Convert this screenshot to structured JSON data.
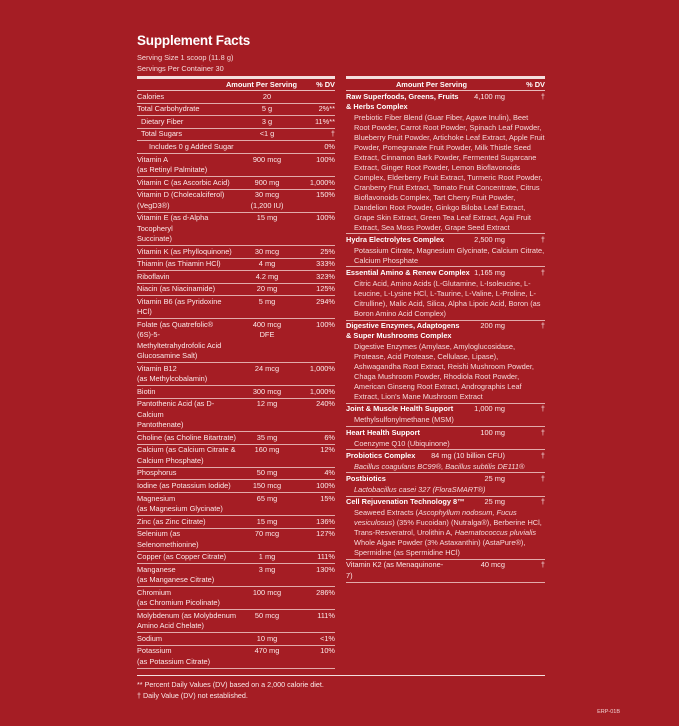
{
  "title": "Supplement Facts",
  "serving_size": "Serving Size 1 scoop (11.8 g)",
  "servings_per_container": "Servings Per Container 30",
  "header": {
    "amount": "Amount Per Serving",
    "dv": "% DV"
  },
  "left_rows": [
    {
      "name": "Calories",
      "amount": "20",
      "dv": "",
      "indent": 0
    },
    {
      "name": "Total Carbohydrate",
      "amount": "5 g",
      "dv": "2%**",
      "indent": 0
    },
    {
      "name": "Dietary Fiber",
      "amount": "3 g",
      "dv": "11%**",
      "indent": 1
    },
    {
      "name": "Total Sugars",
      "amount": "<1 g",
      "dv": "†",
      "indent": 1
    },
    {
      "name": "Includes 0 g Added Sugar",
      "amount": "",
      "dv": "0%",
      "indent": 2
    },
    {
      "name": "Vitamin A\n(as Retinyl Palmitate)",
      "amount": "900 mcg",
      "dv": "100%",
      "indent": 0
    },
    {
      "name": "Vitamin C (as Ascorbic Acid)",
      "amount": "900 mg",
      "dv": "1,000%",
      "indent": 0
    },
    {
      "name": "Vitamin D (Cholecalciferol)\n(VegD3®)",
      "amount": "30 mcg\n(1,200 IU)",
      "dv": "150%",
      "indent": 0
    },
    {
      "name": "Vitamin E (as d-Alpha Tocopheryl\nSuccinate)",
      "amount": "15 mg",
      "dv": "100%",
      "indent": 0
    },
    {
      "name": "Vitamin K (as Phylloquinone)",
      "amount": "30 mcg",
      "dv": "25%",
      "indent": 0
    },
    {
      "name": "Thiamin (as Thiamin HCl)",
      "amount": "4 mg",
      "dv": "333%",
      "indent": 0
    },
    {
      "name": "Riboflavin",
      "amount": "4.2 mg",
      "dv": "323%",
      "indent": 0
    },
    {
      "name": "Niacin (as Niacinamide)",
      "amount": "20 mg",
      "dv": "125%",
      "indent": 0
    },
    {
      "name": "Vitamin B6 (as Pyridoxine HCl)",
      "amount": "5 mg",
      "dv": "294%",
      "indent": 0
    },
    {
      "name": "Folate (as Quatrefolic® (6S)-5-\nMethyltetrahydrofolic Acid\nGlucosamine Salt)",
      "amount": "400 mcg\nDFE",
      "dv": "100%",
      "indent": 0
    },
    {
      "name": "Vitamin B12\n(as Methylcobalamin)",
      "amount": "24 mcg",
      "dv": "1,000%",
      "indent": 0
    },
    {
      "name": "Biotin",
      "amount": "300 mcg",
      "dv": "1,000%",
      "indent": 0
    },
    {
      "name": "Pantothenic Acid (as D-Calcium\nPantothenate)",
      "amount": "12 mg",
      "dv": "240%",
      "indent": 0
    },
    {
      "name": "Choline (as Choline Bitartrate)",
      "amount": "35 mg",
      "dv": "6%",
      "indent": 0
    },
    {
      "name": "Calcium (as Calcium Citrate &\nCalcium Phosphate)",
      "amount": "160 mg",
      "dv": "12%",
      "indent": 0
    },
    {
      "name": "Phosphorus",
      "amount": "50 mg",
      "dv": "4%",
      "indent": 0
    },
    {
      "name": "Iodine (as Potassium Iodide)",
      "amount": "150 mcg",
      "dv": "100%",
      "indent": 0
    },
    {
      "name": "Magnesium\n(as Magnesium Glycinate)",
      "amount": "65 mg",
      "dv": "15%",
      "indent": 0
    },
    {
      "name": "Zinc (as Zinc Citrate)",
      "amount": "15 mg",
      "dv": "136%",
      "indent": 0
    },
    {
      "name": "Selenium (as Selenomethionine)",
      "amount": "70 mcg",
      "dv": "127%",
      "indent": 0
    },
    {
      "name": "Copper (as Copper Citrate)",
      "amount": "1 mg",
      "dv": "111%",
      "indent": 0
    },
    {
      "name": "Manganese\n(as Manganese Citrate)",
      "amount": "3 mg",
      "dv": "130%",
      "indent": 0
    },
    {
      "name": "Chromium\n(as Chromium Picolinate)",
      "amount": "100 mcg",
      "dv": "286%",
      "indent": 0
    },
    {
      "name": "Molybdenum (as Molybdenum\nAmino Acid Chelate)",
      "amount": "50 mcg",
      "dv": "111%",
      "indent": 0
    },
    {
      "name": "Sodium",
      "amount": "10 mg",
      "dv": "<1%",
      "indent": 0
    },
    {
      "name": "Potassium\n(as Potassium Citrate)",
      "amount": "470 mg",
      "dv": "10%",
      "indent": 0
    }
  ],
  "right_sections": [
    {
      "name": "Raw Superfoods, Greens, Fruits\n& Herbs Complex",
      "amount": "4,100 mg",
      "dv": "†",
      "desc": [
        {
          "t": "Prebiotic Fiber Blend (Guar Fiber, Agave Inulin), Beet Root Powder, Carrot Root Powder, Spinach Leaf Powder, Blueberry Fruit Powder, Artichoke Leaf Extract, Apple Fruit Powder, Pomegranate Fruit Powder, Milk Thistle Seed Extract, Cinnamon Bark Powder, Fermented Sugarcane Extract, Ginger Root Powder, Lemon Bioflavonoids Complex, Elderberry Fruit Extract, Turmeric Root Powder, Cranberry Fruit Extract, Tomato Fruit Concentrate, Citrus Bioflavonoids Complex, Tart Cherry Fruit Powder, Dandelion Root Powder, Ginkgo Biloba Leaf Extract, Grape Skin Extract, Green Tea Leaf Extract, Açai Fruit Extract, Sea Moss Powder, Grape Seed Extract",
          "i": false
        }
      ]
    },
    {
      "name": "Hydra Electrolytes Complex",
      "amount": "2,500 mg",
      "dv": "†",
      "desc": [
        {
          "t": "Potassium Citrate, Magnesium Glycinate, Calcium Citrate, Calcium Phosphate",
          "i": false
        }
      ]
    },
    {
      "name": "Essential Amino & Renew Complex",
      "amount": "1,165 mg",
      "dv": "†",
      "desc": [
        {
          "t": "Citric Acid, Amino Acids (L-Glutamine, L-Isoleucine, L-Leucine, L-Lysine HCl, L-Taurine, L-Valine, L-Proline, L-Citrulline), Malic Acid, Silica, Alpha Lipoic Acid, Boron (as Boron Amino Acid Complex)",
          "i": false
        }
      ]
    },
    {
      "name": "Digestive Enzymes, Adaptogens\n& Super Mushrooms Complex",
      "amount": "200 mg",
      "dv": "†",
      "desc": [
        {
          "t": "Digestive Enzymes (Amylase, Amyloglucosidase, Protease, Acid Protease, Cellulase, Lipase), Ashwagandha Root Extract, Reishi Mushroom Powder, Chaga Mushroom Powder, Rhodiola Root Powder, American Ginseng Root Extract, Andrographis Leaf Extract, Lion's Mane Mushroom Extract",
          "i": false
        }
      ]
    },
    {
      "name": "Joint & Muscle Health Support",
      "amount": "1,000 mg",
      "dv": "†",
      "desc": [
        {
          "t": "Methylsulfonylmethane (MSM)",
          "i": false
        }
      ]
    },
    {
      "name": "Heart Health Support",
      "amount": "100 mg",
      "dv": "†",
      "desc": [
        {
          "t": "Coenzyme Q10 (Ubiquinone)",
          "i": false
        }
      ]
    },
    {
      "name": "Probiotics Complex",
      "amount": "84 mg (10 billion CFU)",
      "dv": "†",
      "desc": [
        {
          "t": "Bacillus coagulans BC99®, Bacillus subtilis DE111®",
          "i": true
        }
      ]
    },
    {
      "name": "Postbiotics",
      "amount": "25 mg",
      "dv": "†",
      "desc": [
        {
          "t": "Lactobacillus casei 327 (FloraSMART®)",
          "i": true
        }
      ]
    },
    {
      "name": "Cell Rejuvenation Technology 8™",
      "amount": "25 mg",
      "dv": "†",
      "desc": [
        {
          "t": "Seaweed Extracts (",
          "i": false
        },
        {
          "t": "Ascophyllum nodosum, Fucus vesiculosus",
          "i": true
        },
        {
          "t": ") (35% Fucoidan) (Nutralga®), Berberine HCl, Trans-Resveratrol, Urolithin A, ",
          "i": false
        },
        {
          "t": "Haematococcus pluvialis",
          "i": true
        },
        {
          "t": " Whole Algae Powder (3% Astaxanthin) (AstaPure®), Spermidine (as Spermidine HCl)",
          "i": false
        }
      ]
    }
  ],
  "right_last_row": {
    "name": "Vitamin K2 (as Menaquinone-7)",
    "amount": "40 mcg",
    "dv": "†"
  },
  "footnotes": [
    "** Percent Daily Values (DV) based on a 2,000 calorie diet.",
    "† Daily Value (DV) not established."
  ],
  "code": "ERP-01B",
  "colors": {
    "background": "#a51d24",
    "text": "#fbeaea"
  }
}
